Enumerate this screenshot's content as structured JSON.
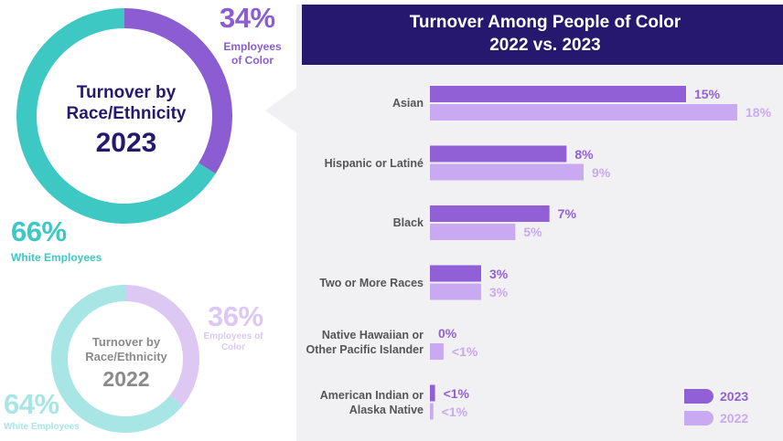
{
  "chart_data": [
    {
      "type": "pie",
      "title": "Turnover by Race/Ethnicity",
      "subtitle": "2023",
      "categories": [
        "Employees of Color",
        "White Employees"
      ],
      "values": [
        34,
        66
      ],
      "value_labels": [
        "34%",
        "66%"
      ],
      "colors": [
        "#8b5cd2",
        "#3ec8c4"
      ]
    },
    {
      "type": "pie",
      "title": "Turnover by Race/Ethnicity",
      "subtitle": "2022",
      "categories": [
        "Employees of Color",
        "White Employees"
      ],
      "values": [
        36,
        64
      ],
      "value_labels": [
        "36%",
        "64%"
      ],
      "colors": [
        "#dcc8f3",
        "#a8e6e6"
      ]
    },
    {
      "type": "bar",
      "orientation": "horizontal",
      "title": "Turnover Among People of Color",
      "subtitle": "2022 vs. 2023",
      "categories": [
        "Asian",
        "Hispanic or Latiné",
        "Black",
        "Two or More Races",
        "Native Hawaiian or Other Pacific Islander",
        "American Indian or Alaska Native"
      ],
      "series": [
        {
          "name": "2023",
          "color": "#9160d6",
          "values": [
            15,
            8,
            7,
            3,
            0,
            0.3
          ],
          "value_labels": [
            "15%",
            "8%",
            "7%",
            "3%",
            "0%",
            "<1%"
          ]
        },
        {
          "name": "2022",
          "color": "#c9a9f1",
          "values": [
            18,
            9,
            5,
            3,
            0.8,
            0.2
          ],
          "value_labels": [
            "18%",
            "9%",
            "5%",
            "3%",
            "<1%",
            "<1%"
          ]
        }
      ],
      "xlim": [
        0,
        18
      ],
      "legend": "lower right"
    }
  ]
}
